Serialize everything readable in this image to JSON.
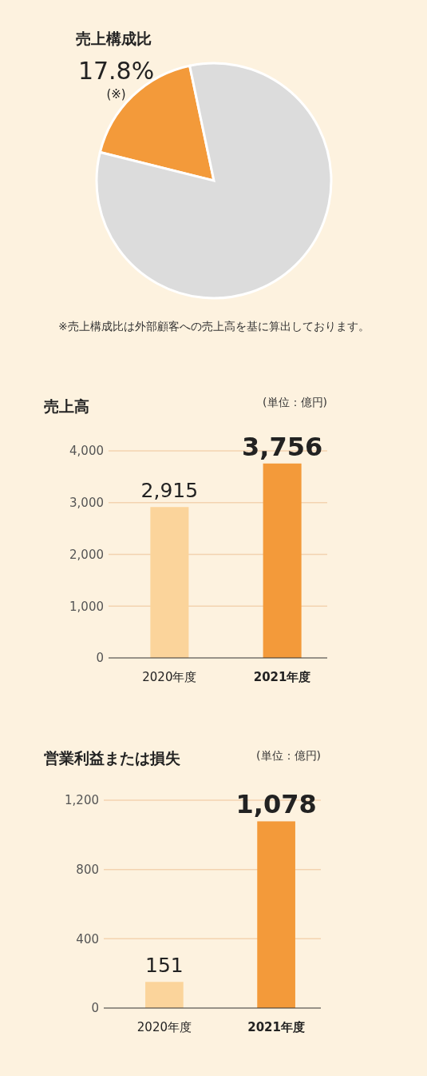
{
  "chart_data": [
    {
      "type": "pie",
      "title": "売上構成比",
      "categories": [
        null,
        null
      ],
      "values": [
        17.8,
        82.2
      ],
      "colors": [
        "#f39a3a",
        "#dcdcdc"
      ],
      "value_labels": [
        "17.8%",
        null
      ],
      "annotations": [
        "(※)",
        "※売上構成比は外部顧客への売上高を基に算出しております。"
      ]
    },
    {
      "type": "bar",
      "title": "売上高",
      "annotations": [
        "(単位：億円)"
      ],
      "categories": [
        "2020年度",
        "2021年度"
      ],
      "values": [
        2915,
        3756
      ],
      "value_labels": [
        "2,915",
        "3,756"
      ],
      "colors": [
        "#fbd49b",
        "#f39a3a"
      ],
      "ylim": [
        0,
        4000
      ],
      "yticks": [
        {
          "value": 0,
          "label": "0"
        },
        {
          "value": 1000,
          "label": "1,000"
        },
        {
          "value": 2000,
          "label": "2,000"
        },
        {
          "value": 3000,
          "label": "3,000"
        },
        {
          "value": 4000,
          "label": "4,000"
        }
      ],
      "grid": "y"
    },
    {
      "type": "bar",
      "title": "営業利益または損失",
      "annotations": [
        "(単位：億円)"
      ],
      "categories": [
        "2020年度",
        "2021年度"
      ],
      "values": [
        151,
        1078
      ],
      "value_labels": [
        "151",
        "1,078"
      ],
      "colors": [
        "#fbd49b",
        "#f39a3a"
      ],
      "ylim": [
        0,
        1200
      ],
      "yticks": [
        {
          "value": 0,
          "label": "0"
        },
        {
          "value": 400,
          "label": "400"
        },
        {
          "value": 800,
          "label": "800"
        },
        {
          "value": 1200,
          "label": "1,200"
        }
      ],
      "grid": "y"
    }
  ]
}
